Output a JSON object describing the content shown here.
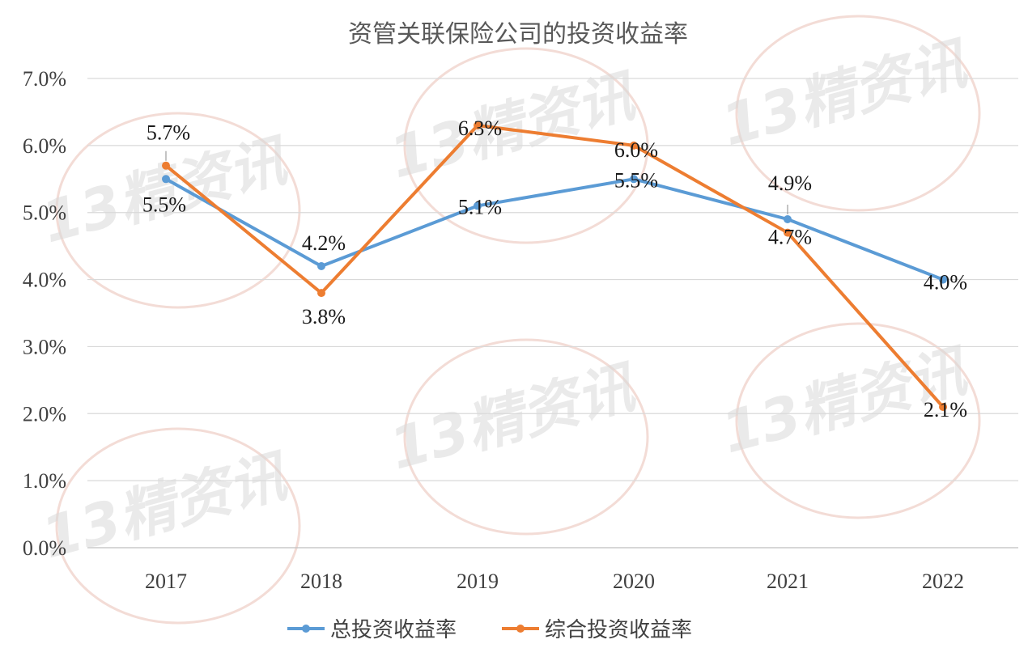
{
  "chart_data": {
    "type": "line",
    "title": "资管关联保险公司的投资收益率",
    "categories": [
      "2017",
      "2018",
      "2019",
      "2020",
      "2021",
      "2022"
    ],
    "ylim": [
      0,
      7
    ],
    "yticks": [
      "0.0%",
      "1.0%",
      "2.0%",
      "3.0%",
      "4.0%",
      "5.0%",
      "6.0%",
      "7.0%"
    ],
    "grid": true,
    "legend_position": "bottom",
    "series": [
      {
        "name": "总投资收益率",
        "color": "#5B9BD5",
        "values": [
          5.5,
          4.2,
          5.1,
          5.5,
          4.9,
          4.0
        ],
        "labels": [
          "5.5%",
          "4.2%",
          "5.1%",
          "5.5%",
          "4.9%",
          "4.0%"
        ]
      },
      {
        "name": "综合投资收益率",
        "color": "#ED7D31",
        "values": [
          5.7,
          3.8,
          6.3,
          6.0,
          4.7,
          2.1
        ],
        "labels": [
          "5.7%",
          "3.8%",
          "6.3%",
          "6.0%",
          "4.7%",
          "2.1%"
        ]
      }
    ]
  },
  "watermark": "13精资讯"
}
